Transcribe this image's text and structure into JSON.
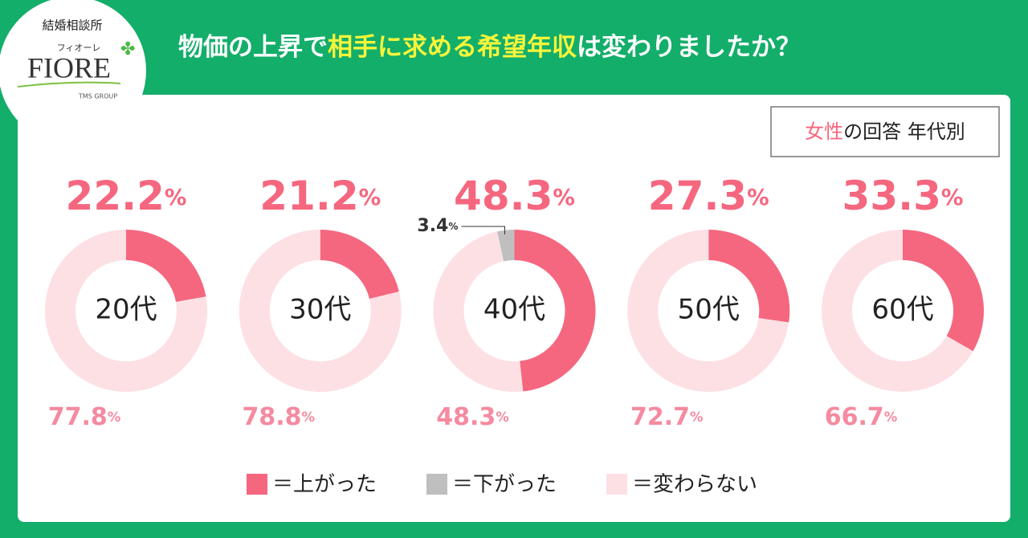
{
  "logo": {
    "caption": "結婚相談所",
    "kana": "フィオーレ",
    "name": "FIORE",
    "group": "TMS GROUP"
  },
  "title": [
    "物価の上昇で",
    "相手に求める希望年収",
    "は変わりましたか？"
  ],
  "badge": [
    "女性",
    "の回答 年代別"
  ],
  "legend": {
    "labels": [
      "＝上がった",
      "＝下がった",
      "＝変わらない"
    ],
    "colors": [
      "#f5677f",
      "#bfbfbf",
      "#fde0e4"
    ]
  },
  "chart_data": [
    {
      "type": "donut",
      "title": "20代",
      "values": [
        22.2,
        null,
        77.8
      ],
      "value_labels": [
        "22.2%",
        null,
        "77.8%"
      ]
    },
    {
      "type": "donut",
      "title": "30代",
      "values": [
        21.2,
        null,
        78.8
      ],
      "value_labels": [
        "21.2%",
        null,
        "78.8%"
      ]
    },
    {
      "type": "donut",
      "title": "40代",
      "values": [
        48.3,
        3.4,
        48.3
      ],
      "value_labels": [
        "48.3%",
        "3.4%",
        "48.3%"
      ]
    },
    {
      "type": "donut",
      "title": "50代",
      "values": [
        27.3,
        null,
        72.7
      ],
      "value_labels": [
        "27.3%",
        null,
        "72.7%"
      ]
    },
    {
      "type": "donut",
      "title": "60代",
      "values": [
        33.3,
        null,
        66.7
      ],
      "value_labels": [
        "33.3%",
        null,
        "66.7%"
      ]
    }
  ]
}
